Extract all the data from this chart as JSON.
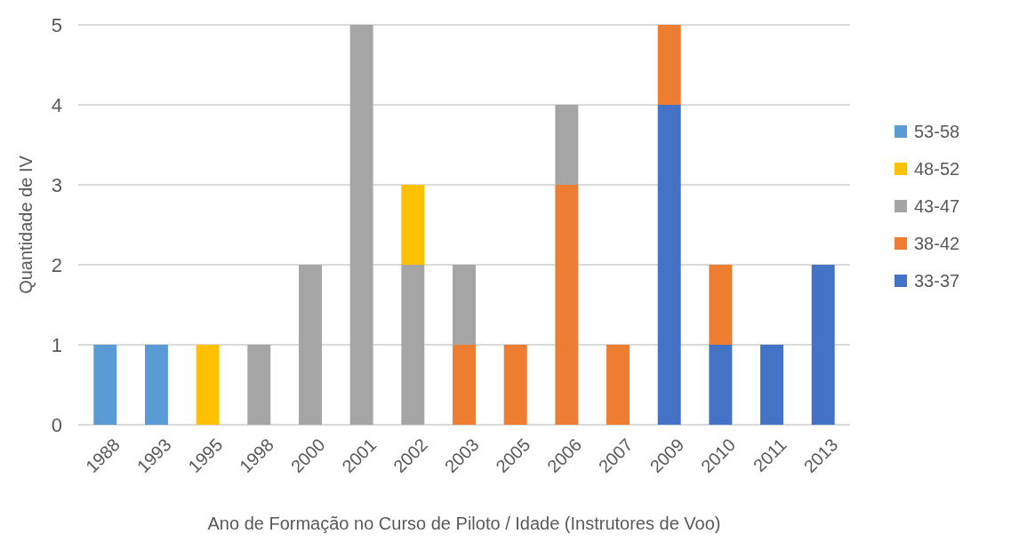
{
  "chart_data": {
    "type": "bar",
    "stacked": true,
    "xlabel": "Ano de Formação no Curso de Piloto / Idade (Instrutores de Voo)",
    "ylabel": "Quantidade de IV",
    "categories": [
      "1988",
      "1993",
      "1995",
      "1998",
      "2000",
      "2001",
      "2002",
      "2003",
      "2005",
      "2006",
      "2007",
      "2009",
      "2010",
      "2011",
      "2013"
    ],
    "series": [
      {
        "name": "33-37",
        "color": "#4472c4",
        "values": [
          0,
          0,
          0,
          0,
          0,
          0,
          0,
          0,
          0,
          0,
          0,
          4,
          1,
          1,
          2
        ]
      },
      {
        "name": "38-42",
        "color": "#ed7d31",
        "values": [
          0,
          0,
          0,
          0,
          0,
          0,
          0,
          1,
          1,
          3,
          1,
          1,
          1,
          0,
          0
        ]
      },
      {
        "name": "43-47",
        "color": "#a5a5a5",
        "values": [
          0,
          0,
          0,
          1,
          2,
          5,
          2,
          1,
          0,
          1,
          0,
          0,
          0,
          0,
          0
        ]
      },
      {
        "name": "48-52",
        "color": "#ffc000",
        "values": [
          0,
          0,
          1,
          0,
          0,
          0,
          1,
          0,
          0,
          0,
          0,
          0,
          0,
          0,
          0
        ]
      },
      {
        "name": "53-58",
        "color": "#5b9bd5",
        "values": [
          1,
          1,
          0,
          0,
          0,
          0,
          0,
          0,
          0,
          0,
          0,
          0,
          0,
          0,
          0
        ]
      }
    ],
    "ylim": [
      0,
      5
    ],
    "yticks": [
      0,
      1,
      2,
      3,
      4,
      5
    ],
    "grid": "y",
    "legend": "right"
  }
}
